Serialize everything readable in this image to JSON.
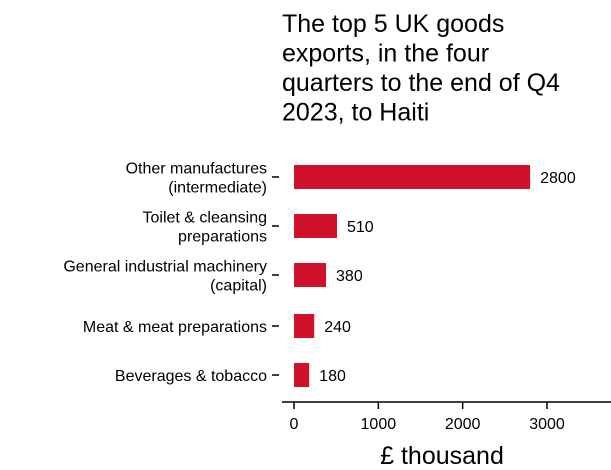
{
  "chart_data": {
    "type": "bar",
    "orientation": "horizontal",
    "title_lines": [
      "The top 5 UK goods",
      "exports, in the four",
      "quarters to the end of Q4",
      "2023, to Haiti"
    ],
    "xlabel": "£ thousand",
    "ylabel": "",
    "categories": [
      [
        "Other manufactures",
        "(intermediate)"
      ],
      [
        "Toilet & cleansing",
        "preparations"
      ],
      [
        "General industrial machinery",
        "(capital)"
      ],
      [
        "Meat & meat preparations"
      ],
      [
        "Beverages & tobacco"
      ]
    ],
    "values": [
      2800,
      510,
      380,
      240,
      180
    ],
    "value_labels": [
      "2800",
      "510",
      "380",
      "240",
      "180"
    ],
    "xlim": [
      0,
      3700
    ],
    "xticks": [
      0,
      1000,
      2000,
      3000
    ],
    "xtick_labels": [
      "0",
      "1000",
      "2000",
      "3000"
    ],
    "bar_color": "#d0112b",
    "grid": false,
    "legend": "none"
  }
}
